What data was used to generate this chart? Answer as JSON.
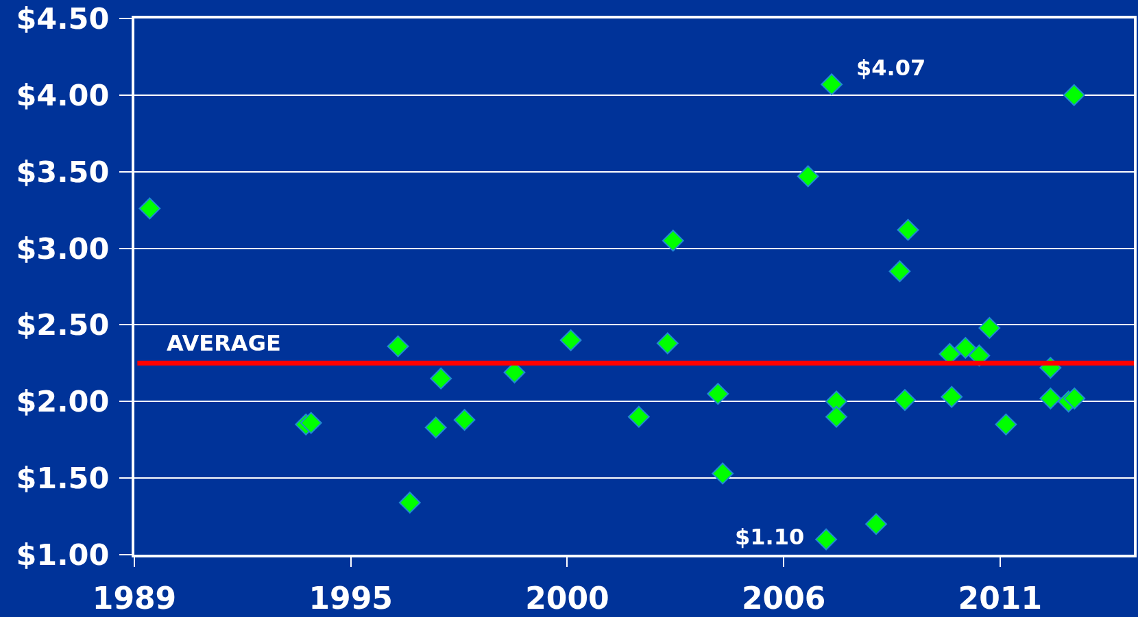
{
  "chart_data": {
    "type": "scatter",
    "x": [
      1989.89,
      1993.86,
      1993.99,
      1996.2,
      1996.5,
      1997.16,
      1997.29,
      1997.89,
      1999.16,
      2000.59,
      2002.32,
      2003.05,
      2003.19,
      2004.33,
      2004.45,
      2006.62,
      2007.08,
      2007.22,
      2007.34,
      2007.34,
      2008.35,
      2008.95,
      2009.08,
      2009.16,
      2010.22,
      2010.27,
      2010.62,
      2010.97,
      2011.23,
      2011.65,
      2012.78,
      2012.78,
      2013.24,
      2013.39,
      2013.38
    ],
    "values": [
      3.26,
      1.85,
      1.86,
      2.36,
      1.34,
      1.83,
      2.15,
      1.88,
      2.19,
      2.4,
      1.9,
      2.38,
      3.05,
      2.05,
      1.53,
      3.47,
      1.1,
      4.07,
      2.0,
      1.9,
      1.2,
      2.85,
      2.01,
      3.12,
      2.31,
      2.03,
      2.35,
      2.3,
      2.48,
      1.85,
      2.22,
      2.02,
      2.0,
      2.02,
      4.0
    ],
    "color": "#00ff00",
    "marker": "diamond",
    "xlim": [
      1989.5,
      2014.9
    ],
    "xticks": [
      {
        "value": 1989.5,
        "label": "1989"
      },
      1995,
      {
        "value": 2000.5,
        "label": "2000"
      },
      2006,
      {
        "value": 2011.5,
        "label": "2011"
      }
    ],
    "ylim": [
      1,
      4.5
    ],
    "yticks": [
      {
        "value": 1,
        "label": "$1.00"
      },
      {
        "value": 1.5,
        "label": "$1.50"
      },
      {
        "value": 2,
        "label": "$2.00"
      },
      {
        "value": 2.5,
        "label": "$2.50"
      },
      {
        "value": 3,
        "label": "$3.00"
      },
      {
        "value": 3.5,
        "label": "$3.50"
      },
      {
        "value": 4,
        "label": "$4.00"
      },
      {
        "value": 4.5,
        "label": "$4.50"
      }
    ],
    "ref_lines": [
      {
        "axis": "y",
        "value": 2.25,
        "label": "AVERAGE",
        "color": "#ff0000"
      }
    ],
    "annotations": [
      {
        "text": "$4.07",
        "x": 2007.22,
        "y": 4.07
      },
      {
        "text": "$1.10",
        "x": 2007.08,
        "y": 1.1
      }
    ],
    "grid": "y"
  }
}
